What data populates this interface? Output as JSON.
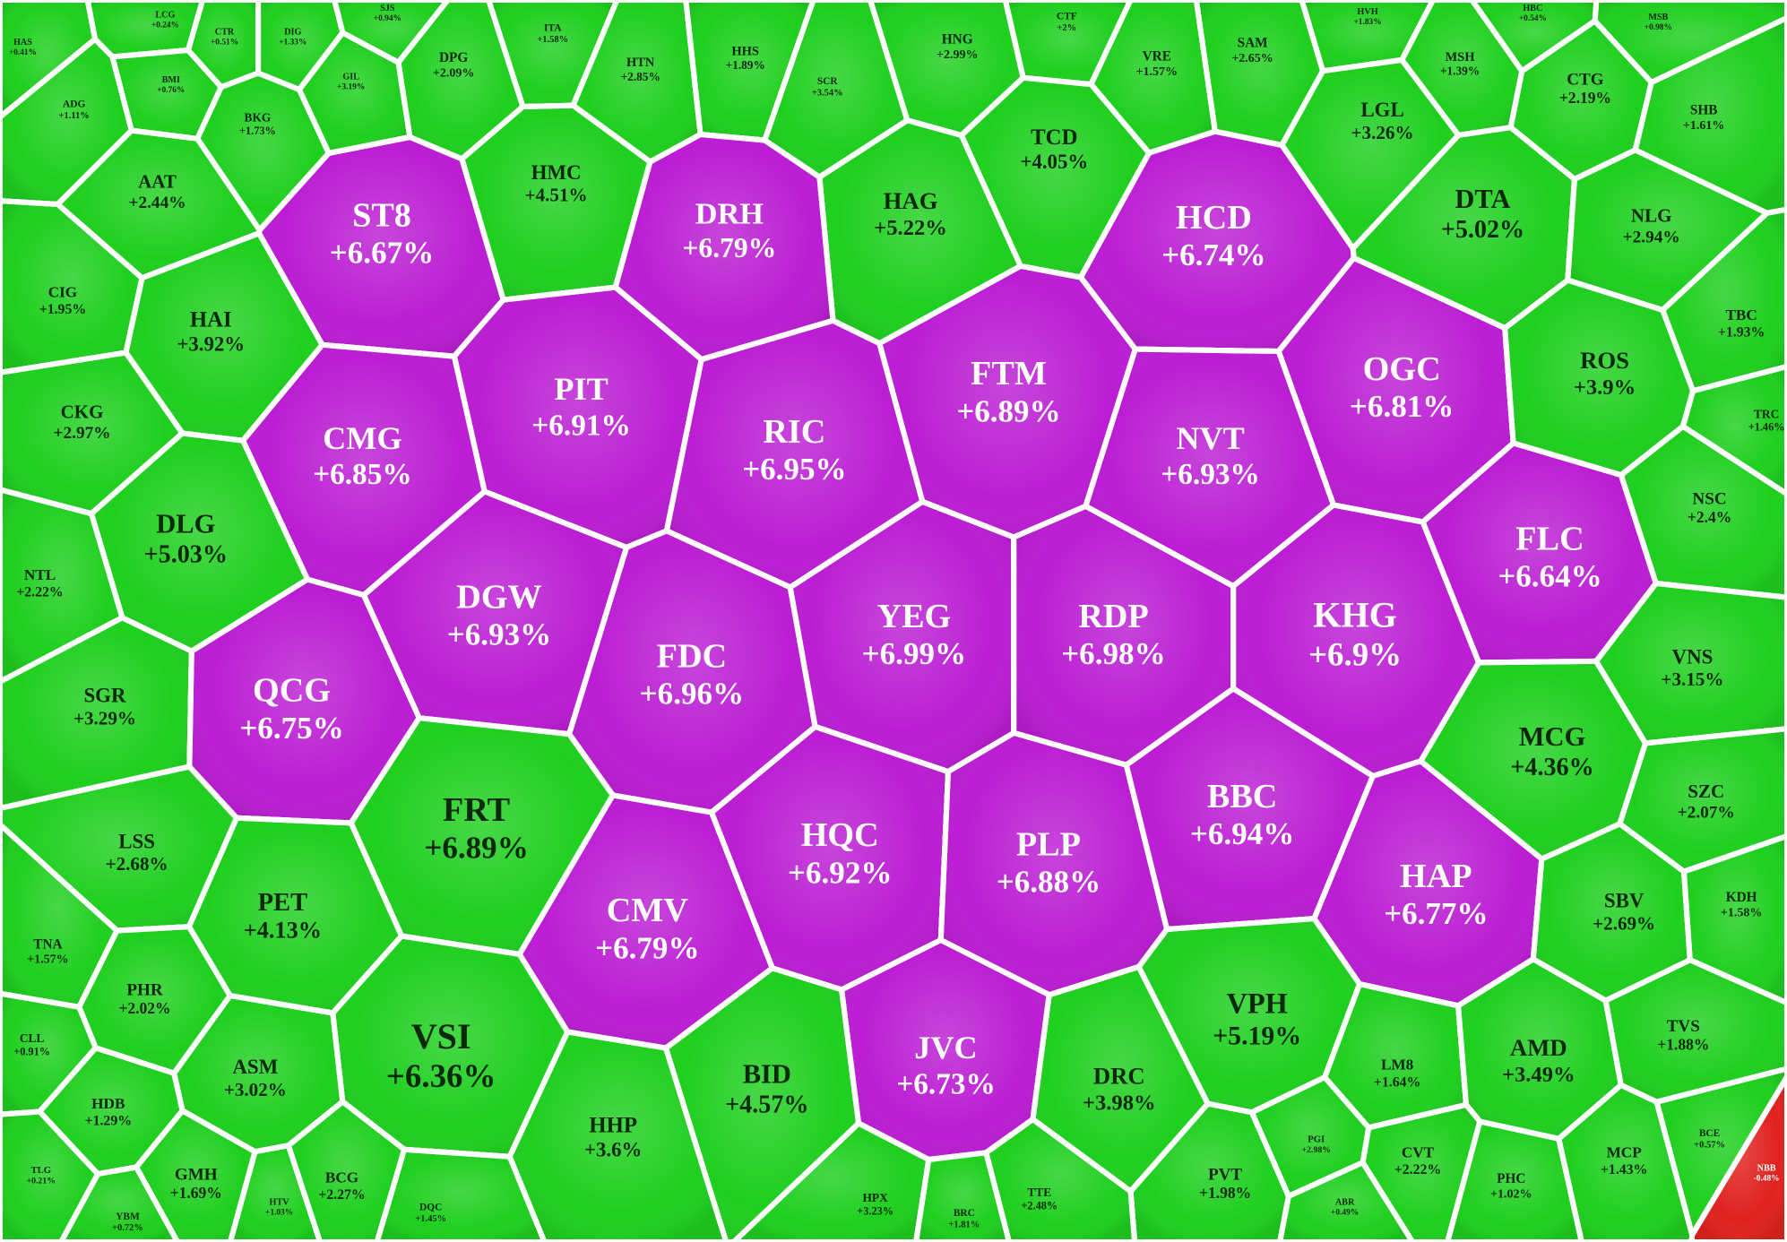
{
  "chart_data": {
    "type": "voronoi-treemap",
    "categories": [
      "HAS",
      "ADG",
      "LCG",
      "BMI",
      "CTR",
      "DIG",
      "GIL",
      "BKG",
      "SJS",
      "DPG",
      "ITA",
      "HTN",
      "HHS",
      "SCR",
      "HNG",
      "CTF",
      "VRE",
      "SAM",
      "HVH",
      "MSH",
      "HBC",
      "CTG",
      "MSB",
      "SHB",
      "AAT",
      "HMC",
      "TCD",
      "LGL",
      "HAG",
      "DTA",
      "NLG",
      "ST8",
      "DRH",
      "HCD",
      "CIG",
      "HAI",
      "PIT",
      "FTM",
      "OGC",
      "ROS",
      "TBC",
      "CKG",
      "CMG",
      "RIC",
      "NVT",
      "TRC",
      "DLG",
      "NTL",
      "DGW",
      "FDC",
      "YEG",
      "RDP",
      "KHG",
      "FLC",
      "NSC",
      "SGR",
      "QCG",
      "MCG",
      "VNS",
      "LSS",
      "FRT",
      "HQC",
      "PLP",
      "BBC",
      "HAP",
      "SZC",
      "CMV",
      "PET",
      "TNA",
      "SBV",
      "KDH",
      "PHR",
      "VSI",
      "CLL",
      "ASM",
      "BID",
      "JVC",
      "DRC",
      "VPH",
      "LM8",
      "AMD",
      "TVS",
      "HDB",
      "HHP",
      "GMH",
      "BCG",
      "PVT",
      "CVT",
      "PHC",
      "MCP",
      "TTE",
      "HPX",
      "BRC",
      "DQC",
      "PGI",
      "ABR",
      "BCE",
      "YBM",
      "TLG",
      "HTV",
      "NBB"
    ],
    "values": [
      0.41,
      1.11,
      0.24,
      0.76,
      0.51,
      1.33,
      3.19,
      1.73,
      0.94,
      2.09,
      1.58,
      2.85,
      1.89,
      3.54,
      2.99,
      2,
      1.57,
      2.65,
      1.83,
      1.39,
      0.54,
      2.19,
      0.98,
      1.61,
      2.44,
      4.51,
      4.05,
      3.26,
      5.22,
      5.02,
      2.94,
      6.67,
      6.79,
      6.74,
      1.95,
      3.92,
      6.91,
      6.89,
      6.81,
      3.9,
      1.93,
      2.97,
      6.85,
      6.95,
      6.93,
      1.46,
      5.03,
      2.22,
      6.93,
      6.96,
      6.99,
      6.98,
      6.9,
      6.64,
      2.4,
      3.29,
      6.75,
      4.36,
      3.15,
      2.68,
      6.89,
      6.92,
      6.88,
      6.94,
      6.77,
      2.07,
      6.79,
      4.13,
      1.57,
      2.69,
      1.58,
      2.02,
      6.36,
      0.91,
      3.02,
      4.57,
      6.73,
      3.98,
      5.19,
      1.64,
      3.49,
      1.88,
      1.29,
      3.6,
      1.69,
      2.27,
      1.98,
      2.22,
      1.02,
      1.43,
      2.48,
      3.23,
      1.81,
      1.45,
      2.98,
      0.49,
      0.57,
      0.72,
      0.21,
      1.03,
      -0.48
    ],
    "value_labels": [
      "+0.41%",
      "+1.11%",
      "+0.24%",
      "+0.76%",
      "+0.51%",
      "+1.33%",
      "+3.19%",
      "+1.73%",
      "+0.94%",
      "+2.09%",
      "+1.58%",
      "+2.85%",
      "+1.89%",
      "+3.54%",
      "+2.99%",
      "+2%",
      "+1.57%",
      "+2.65%",
      "+1.83%",
      "+1.39%",
      "+0.54%",
      "+2.19%",
      "+0.98%",
      "+1.61%",
      "+2.44%",
      "+4.51%",
      "+4.05%",
      "+3.26%",
      "+5.22%",
      "+5.02%",
      "+2.94%",
      "+6.67%",
      "+6.79%",
      "+6.74%",
      "+1.95%",
      "+3.92%",
      "+6.91%",
      "+6.89%",
      "+6.81%",
      "+3.9%",
      "+1.93%",
      "+2.97%",
      "+6.85%",
      "+6.95%",
      "+6.93%",
      "+1.46%",
      "+5.03%",
      "+2.22%",
      "+6.93%",
      "+6.96%",
      "+6.99%",
      "+6.98%",
      "+6.9%",
      "+6.64%",
      "+2.4%",
      "+3.29%",
      "+6.75%",
      "+4.36%",
      "+3.15%",
      "+2.68%",
      "+6.89%",
      "+6.92%",
      "+6.88%",
      "+6.94%",
      "+6.77%",
      "+2.07%",
      "+6.79%",
      "+4.13%",
      "+1.57%",
      "+2.69%",
      "+1.58%",
      "+2.02%",
      "+6.36%",
      "+0.91%",
      "+3.02%",
      "+4.57%",
      "+6.73%",
      "+3.98%",
      "+5.19%",
      "+1.64%",
      "+3.49%",
      "+1.88%",
      "+1.29%",
      "+3.6%",
      "+1.69%",
      "+2.27%",
      "+1.98%",
      "+2.22%",
      "+1.02%",
      "+1.43%",
      "+2.48%",
      "+3.23%",
      "+1.81%",
      "+1.45%",
      "+2.98%",
      "+0.49%",
      "+0.57%",
      "+0.72%",
      "+0.21%",
      "+1.03%",
      "-0.48%"
    ],
    "colors": [
      "#1fcf1f",
      "#1fcf1f",
      "#1fcf1f",
      "#1fcf1f",
      "#1fcf1f",
      "#1fcf1f",
      "#1fcf1f",
      "#1fcf1f",
      "#1fcf1f",
      "#1fcf1f",
      "#1fcf1f",
      "#1fcf1f",
      "#1fcf1f",
      "#1fcf1f",
      "#1fcf1f",
      "#1fcf1f",
      "#1fcf1f",
      "#1fcf1f",
      "#1fcf1f",
      "#1fcf1f",
      "#1fcf1f",
      "#1fcf1f",
      "#1fcf1f",
      "#1fcf1f",
      "#1fcf1f",
      "#1fcf1f",
      "#1fcf1f",
      "#1fcf1f",
      "#1fcf1f",
      "#1fcf1f",
      "#1fcf1f",
      "#bb1dd3",
      "#bb1dd3",
      "#bb1dd3",
      "#1fcf1f",
      "#1fcf1f",
      "#bb1dd3",
      "#bb1dd3",
      "#bb1dd3",
      "#1fcf1f",
      "#1fcf1f",
      "#1fcf1f",
      "#bb1dd3",
      "#bb1dd3",
      "#bb1dd3",
      "#1fcf1f",
      "#1fcf1f",
      "#1fcf1f",
      "#bb1dd3",
      "#bb1dd3",
      "#bb1dd3",
      "#bb1dd3",
      "#bb1dd3",
      "#bb1dd3",
      "#1fcf1f",
      "#1fcf1f",
      "#bb1dd3",
      "#1fcf1f",
      "#1fcf1f",
      "#1fcf1f",
      "#1fcf1f",
      "#bb1dd3",
      "#bb1dd3",
      "#bb1dd3",
      "#bb1dd3",
      "#1fcf1f",
      "#bb1dd3",
      "#1fcf1f",
      "#1fcf1f",
      "#1fcf1f",
      "#1fcf1f",
      "#1fcf1f",
      "#1fcf1f",
      "#1fcf1f",
      "#1fcf1f",
      "#1fcf1f",
      "#bb1dd3",
      "#1fcf1f",
      "#1fcf1f",
      "#1fcf1f",
      "#1fcf1f",
      "#1fcf1f",
      "#1fcf1f",
      "#1fcf1f",
      "#1fcf1f",
      "#1fcf1f",
      "#1fcf1f",
      "#1fcf1f",
      "#1fcf1f",
      "#1fcf1f",
      "#1fcf1f",
      "#1fcf1f",
      "#1fcf1f",
      "#1fcf1f",
      "#1fcf1f",
      "#1fcf1f",
      "#1fcf1f",
      "#1fcf1f",
      "#1fcf1f",
      "#1fcf1f",
      "#e0221f"
    ]
  }
}
